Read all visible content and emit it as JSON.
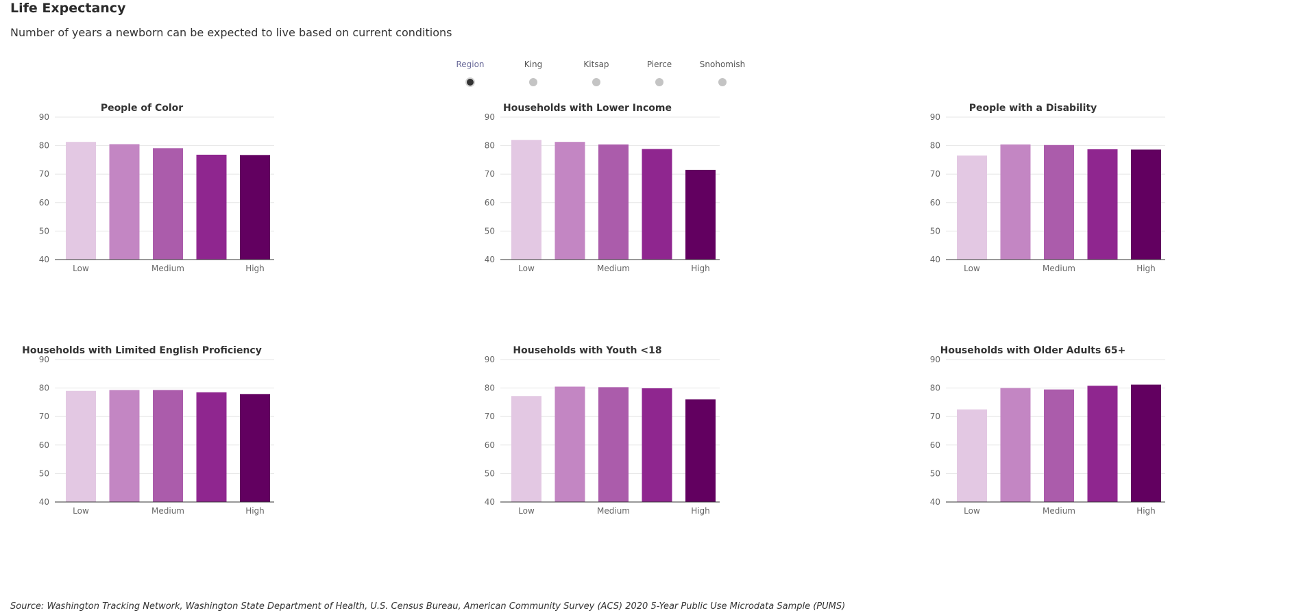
{
  "header": {
    "title": "Life Expectancy",
    "subtitle": "Number of years a newborn can be expected to live based on current conditions"
  },
  "geography_selector": {
    "selected": "Region",
    "options": [
      "Region",
      "King",
      "Kitsap",
      "Pierce",
      "Snohomish"
    ]
  },
  "colors": {
    "bars": [
      "#e3c8e3",
      "#c386c3",
      "#ab5cab",
      "#8f268f",
      "#620060"
    ],
    "gridline": "#e6e6e6",
    "axis": "#333333"
  },
  "chart_data": [
    {
      "type": "bar",
      "title": "People of Color",
      "categories": [
        "Low",
        "",
        "Medium",
        "",
        "High"
      ],
      "values": [
        81.3,
        80.5,
        79.1,
        76.8,
        76.7
      ],
      "ylim": [
        40,
        90
      ],
      "yticks": [
        40,
        50,
        60,
        70,
        80,
        90
      ],
      "grid": true
    },
    {
      "type": "bar",
      "title": "Households with Lower Income",
      "categories": [
        "Low",
        "",
        "Medium",
        "",
        "High"
      ],
      "values": [
        82.0,
        81.3,
        80.4,
        78.8,
        71.5
      ],
      "ylim": [
        40,
        90
      ],
      "yticks": [
        40,
        50,
        60,
        70,
        80,
        90
      ],
      "grid": true
    },
    {
      "type": "bar",
      "title": "People with a Disability",
      "categories": [
        "Low",
        "",
        "Medium",
        "",
        "High"
      ],
      "values": [
        76.5,
        80.4,
        80.2,
        78.7,
        78.6
      ],
      "ylim": [
        40,
        90
      ],
      "yticks": [
        40,
        50,
        60,
        70,
        80,
        90
      ],
      "grid": true
    },
    {
      "type": "bar",
      "title": "Households with Limited English Proficiency",
      "categories": [
        "Low",
        "",
        "Medium",
        "",
        "High"
      ],
      "values": [
        79.0,
        79.3,
        79.3,
        78.5,
        77.9
      ],
      "ylim": [
        40,
        90
      ],
      "yticks": [
        40,
        50,
        60,
        70,
        80,
        90
      ],
      "grid": true
    },
    {
      "type": "bar",
      "title": "Households with Youth <18",
      "categories": [
        "Low",
        "",
        "Medium",
        "",
        "High"
      ],
      "values": [
        77.2,
        80.5,
        80.3,
        79.9,
        76.0
      ],
      "ylim": [
        40,
        90
      ],
      "yticks": [
        40,
        50,
        60,
        70,
        80,
        90
      ],
      "grid": true
    },
    {
      "type": "bar",
      "title": "Households with Older Adults 65+",
      "categories": [
        "Low",
        "",
        "Medium",
        "",
        "High"
      ],
      "values": [
        72.5,
        80.0,
        79.5,
        80.8,
        81.2
      ],
      "ylim": [
        40,
        90
      ],
      "yticks": [
        40,
        50,
        60,
        70,
        80,
        90
      ],
      "grid": true
    }
  ],
  "footer": {
    "source": "Source: Washington Tracking Network, Washington State Department of Health, U.S. Census Bureau, American Community Survey (ACS) 2020 5-Year Public Use Microdata Sample (PUMS)"
  }
}
